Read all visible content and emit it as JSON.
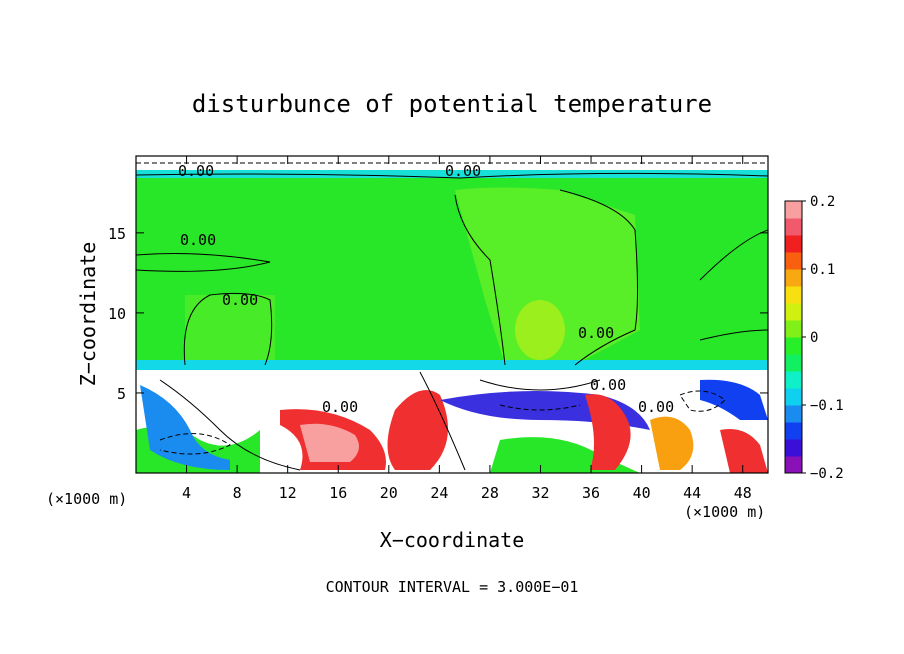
{
  "chart_data": {
    "type": "heatmap",
    "title": "disturbunce of potential temperature",
    "xlabel": "X−coordinate",
    "ylabel": "Z−coordinate",
    "x_unit": "(×1000 m)",
    "x_unit_right": "(×1000 m)",
    "xlim": [
      0,
      50
    ],
    "ylim": [
      0,
      19.8
    ],
    "xticks": [
      4,
      8,
      12,
      16,
      20,
      24,
      28,
      32,
      36,
      40,
      44,
      48
    ],
    "yticks": [
      5,
      10,
      15
    ],
    "colorbar": {
      "range": [
        -0.2,
        0.2
      ],
      "ticks": [
        0.2,
        0.1,
        0,
        -0.1,
        -0.2
      ],
      "tick_labels": [
        "0.2",
        "0.1",
        "0",
        "−0.1",
        "−0.2"
      ],
      "colors": [
        "#8a10b8",
        "#3a10d8",
        "#1040f0",
        "#1a8cf0",
        "#10d0f0",
        "#10f0c8",
        "#10f060",
        "#28f028",
        "#80f018",
        "#d0f010",
        "#f8e010",
        "#f8a810",
        "#f86010",
        "#f02020",
        "#f05a6a",
        "#f8a0a0"
      ]
    },
    "contour_labels": [
      "0.00",
      "0.00",
      "0.00",
      "0.00",
      "0.00",
      "0.00",
      "0.00",
      "0.00"
    ],
    "footer": "CONTOUR INTERVAL = 3.000E−01"
  }
}
